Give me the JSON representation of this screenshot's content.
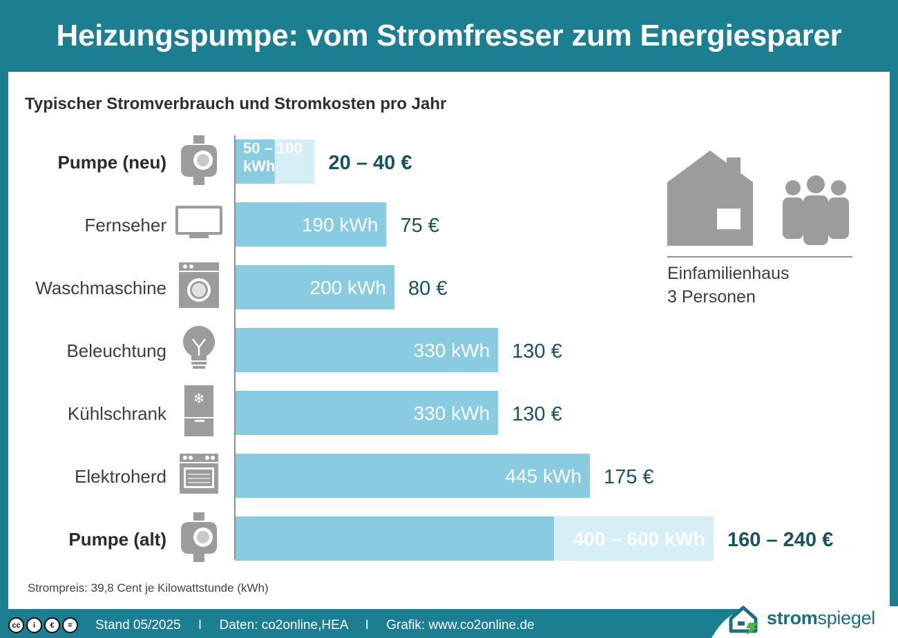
{
  "title": "Heizungspumpe: vom Stromfresser zum Energiesparer",
  "colors": {
    "header_bg": "#1b7f91",
    "bar": "#89cbe0",
    "bar_range": "#d6eef6",
    "value_text": "#17525e",
    "icon": "#9c9c9c"
  },
  "chart_data": {
    "type": "bar",
    "orientation": "horizontal",
    "title": "Typischer Stromverbrauch und Stromkosten pro Jahr",
    "unit": "kWh",
    "categories": [
      "Pumpe (neu)",
      "Fernseher",
      "Waschmaschine",
      "Beleuchtung",
      "Kühlschrank",
      "Elektroherd",
      "Pumpe (alt)"
    ],
    "bold": [
      true,
      false,
      false,
      true,
      false,
      false,
      true
    ],
    "icons": [
      "pump-icon",
      "tv-icon",
      "washing-machine-icon",
      "light-bulb-icon",
      "fridge-icon",
      "stove-icon",
      "pump-icon"
    ],
    "values_min": [
      50,
      190,
      200,
      330,
      330,
      445,
      400
    ],
    "values_max": [
      100,
      190,
      200,
      330,
      330,
      445,
      600
    ],
    "kwh_labels": [
      "50 – 100 kWh",
      "190 kWh",
      "200 kWh",
      "330 kWh",
      "330 kWh",
      "445 kWh",
      "400 – 600 kWh"
    ],
    "cost_labels": [
      "20 – 40 €",
      "75 €",
      "80 €",
      "130 €",
      "130 €",
      "175 €",
      "160 – 240 €"
    ]
  },
  "household": {
    "line1": "Einfamilienhaus",
    "line2": "3 Personen",
    "icons": [
      "house-icon",
      "family-icon"
    ]
  },
  "footnote": "Strompreis: 39,8 Cent je Kilowattstunde (kWh)",
  "footer": {
    "stand": "Stand 05/2025",
    "daten": "Daten: co2online,HEA",
    "grafik": "Grafik: www.co2online.de",
    "separator": "I",
    "license_icons": [
      "cc",
      "i",
      "€",
      "="
    ]
  },
  "brand": {
    "bold": "strom",
    "light": "spiegel"
  }
}
